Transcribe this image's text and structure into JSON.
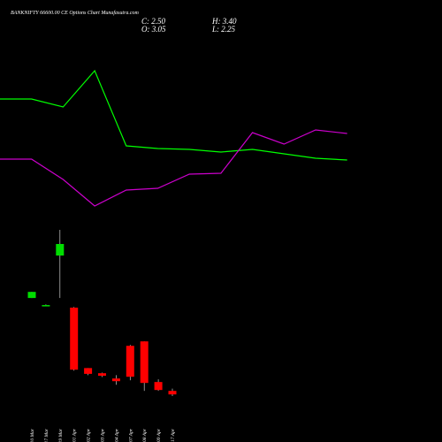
{
  "chart_data": [
    {
      "type": "line",
      "series": [
        {
          "color": "#00ff00",
          "values": [
            388,
            388,
            379,
            420,
            335,
            332,
            331,
            328,
            331,
            326,
            321,
            319
          ]
        },
        {
          "color": "#cc00cc",
          "values": [
            320,
            320,
            297,
            267,
            285,
            287,
            303,
            304,
            350,
            337,
            353,
            349
          ]
        }
      ]
    },
    {
      "type": "candlestick",
      "title": "BANKNIFTY 66600.00 CE Options Chart Munafasutra.com",
      "info": [
        "C: 2.50",
        "H: 3.40",
        "O: 3.05",
        "L: 2.25"
      ],
      "categories": [
        "10 Mar",
        "17 Mar",
        "19 Mar",
        "01 Apr",
        "02 Apr",
        "03 Apr",
        "04 Apr",
        "07 Apr",
        "08 Apr",
        "09 Apr",
        "17 Apr"
      ],
      "open": [
        17.5,
        16.4,
        24.1,
        16.0,
        6.6,
        5.8,
        4.98,
        10.06,
        10.75,
        4.43,
        3.05
      ],
      "high": [
        18.45,
        16.5,
        28.1,
        16.1,
        6.6,
        5.9,
        5.5,
        10.2,
        10.75,
        4.84,
        3.4
      ],
      "low": [
        17.5,
        16.3,
        17.5,
        6.2,
        5.5,
        5.2,
        4.0,
        4.7,
        3.05,
        3.05,
        2.25
      ],
      "close": [
        18.45,
        16.4,
        25.9,
        6.35,
        5.7,
        5.4,
        4.56,
        5.25,
        4.29,
        3.19,
        2.5
      ],
      "up_color": "#00dd00",
      "down_color": "#ff0000"
    }
  ]
}
